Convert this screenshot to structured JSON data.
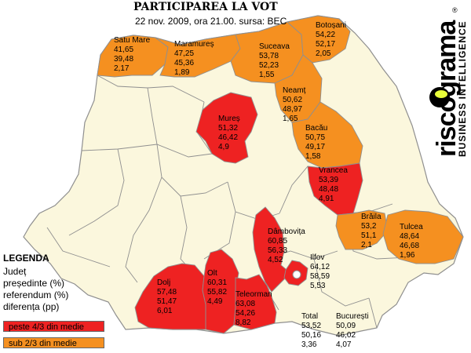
{
  "title": "PARTICIPAREA LA VOT",
  "subtitle": "22 nov. 2009, ora 21.00. sursa: BEC",
  "brand": {
    "name": "riscograma",
    "tagline": "BUSINESS INTELLIGENCE",
    "registered": "®"
  },
  "colors": {
    "above": "#ee2222",
    "below": "#f59020",
    "land": "#fbf7dd",
    "border": "#8f8f8f",
    "water": "#ffffff"
  },
  "legend": {
    "title": "LEGENDA",
    "items": [
      "Județ",
      "președinte (%)",
      "referendum (%)",
      "diferența (pp)"
    ],
    "above_label": "peste 4/3 din medie",
    "below_label": "sub 2/3 din medie"
  },
  "counties": [
    {
      "id": "satu-mare",
      "name": "Satu Mare",
      "values": [
        "41,65",
        "39,48",
        "2,17"
      ],
      "category": "below"
    },
    {
      "id": "maramures",
      "name": "Maramureș",
      "values": [
        "47,25",
        "45,36",
        "1,89"
      ],
      "category": "below"
    },
    {
      "id": "botosani",
      "name": "Botoșani",
      "values": [
        "54,22",
        "52,17",
        "2,05"
      ],
      "category": "below"
    },
    {
      "id": "suceava",
      "name": "Suceava",
      "values": [
        "53,78",
        "52,23",
        "1,55"
      ],
      "category": "below"
    },
    {
      "id": "neamt",
      "name": "Neamț",
      "values": [
        "50,62",
        "48,97",
        "1,65"
      ],
      "category": "below"
    },
    {
      "id": "bacau",
      "name": "Bacău",
      "values": [
        "50,75",
        "49,17",
        "1,58"
      ],
      "category": "below"
    },
    {
      "id": "mures",
      "name": "Mureș",
      "values": [
        "51,32",
        "46,42",
        "4,9"
      ],
      "category": "above"
    },
    {
      "id": "vrancea",
      "name": "Vrancea",
      "values": [
        "53,39",
        "48,48",
        "4,91"
      ],
      "category": "above"
    },
    {
      "id": "braila",
      "name": "Brăila",
      "values": [
        "53,2",
        "51,1",
        "2,1"
      ],
      "category": "below"
    },
    {
      "id": "tulcea",
      "name": "Tulcea",
      "values": [
        "48,64",
        "46,68",
        "1,96"
      ],
      "category": "below"
    },
    {
      "id": "dambovita",
      "name": "Dâmbovița",
      "values": [
        "60,85",
        "56,33",
        "4,52"
      ],
      "category": "above"
    },
    {
      "id": "ilfov",
      "name": "Ilfov",
      "values": [
        "64,12",
        "58,59",
        "5,53"
      ],
      "category": "above"
    },
    {
      "id": "dolj",
      "name": "Dolj",
      "values": [
        "57,48",
        "51,47",
        "6,01"
      ],
      "category": "above"
    },
    {
      "id": "olt",
      "name": "Olt",
      "values": [
        "60,31",
        "55,82",
        "4,49"
      ],
      "category": "above"
    },
    {
      "id": "teleorman",
      "name": "Teleorman",
      "values": [
        "63,08",
        "54,26",
        "8,82"
      ],
      "category": "above"
    }
  ],
  "totals": [
    {
      "name": "Total",
      "values": [
        "53,52",
        "50,16",
        "3,36"
      ]
    },
    {
      "name": "București",
      "values": [
        "50,09",
        "46,02",
        "4,07"
      ]
    }
  ]
}
